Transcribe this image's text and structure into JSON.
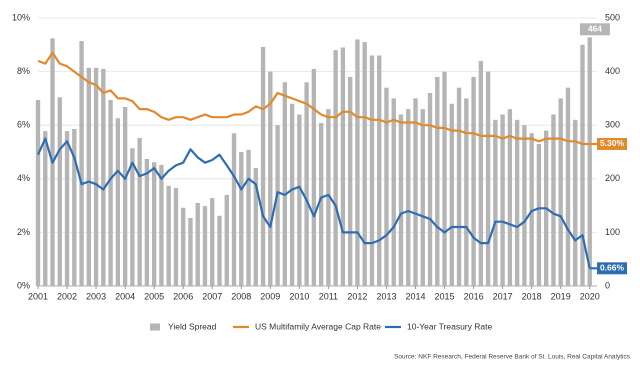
{
  "chart_data": {
    "type": "bar",
    "x": [
      2001,
      2001.25,
      2001.5,
      2001.75,
      2002,
      2002.25,
      2002.5,
      2002.75,
      2003,
      2003.25,
      2003.5,
      2003.75,
      2004,
      2004.25,
      2004.5,
      2004.75,
      2005,
      2005.25,
      2005.5,
      2005.75,
      2006,
      2006.25,
      2006.5,
      2006.75,
      2007,
      2007.25,
      2007.5,
      2007.75,
      2008,
      2008.25,
      2008.5,
      2008.75,
      2009,
      2009.25,
      2009.5,
      2009.75,
      2010,
      2010.25,
      2010.5,
      2010.75,
      2011,
      2011.25,
      2011.5,
      2011.75,
      2012,
      2012.25,
      2012.5,
      2012.75,
      2013,
      2013.25,
      2013.5,
      2013.75,
      2014,
      2014.25,
      2014.5,
      2014.75,
      2015,
      2015.25,
      2015.5,
      2015.75,
      2016,
      2016.25,
      2016.5,
      2016.75,
      2017,
      2017.25,
      2017.5,
      2017.75,
      2018,
      2018.25,
      2018.5,
      2018.75,
      2019,
      2019.25,
      2019.5,
      2019.75,
      2020
    ],
    "xlim": [
      2001,
      2020.25
    ],
    "xticks": [
      2001,
      2002,
      2003,
      2004,
      2005,
      2006,
      2007,
      2008,
      2009,
      2010,
      2011,
      2012,
      2013,
      2014,
      2015,
      2016,
      2017,
      2018,
      2019,
      2020
    ],
    "ylim": [
      0,
      10
    ],
    "yticks": [
      {
        "value": 0,
        "label": "0%"
      },
      {
        "value": 2,
        "label": "2%"
      },
      {
        "value": 4,
        "label": "4%"
      },
      {
        "value": 6,
        "label": "6%"
      },
      {
        "value": 8,
        "label": "8%"
      },
      {
        "value": 10,
        "label": "10%"
      }
    ],
    "y2lim": [
      0,
      500
    ],
    "y2ticks": [
      0,
      100,
      200,
      300,
      400,
      500
    ],
    "grid": true,
    "legend": "bottom",
    "series": [
      {
        "name": "Yield Spread",
        "type": "bar",
        "axis": "y2",
        "color": "#b5b5b5",
        "values": [
          347,
          289,
          462,
          352,
          289,
          293,
          457,
          407,
          407,
          405,
          347,
          313,
          334,
          257,
          276,
          237,
          231,
          226,
          187,
          183,
          146,
          127,
          155,
          149,
          164,
          131,
          170,
          285,
          250,
          254,
          220,
          446,
          400,
          300,
          380,
          340,
          320,
          380,
          405,
          304,
          330,
          440,
          445,
          390,
          460,
          455,
          430,
          430,
          370,
          350,
          320,
          330,
          350,
          330,
          360,
          390,
          400,
          340,
          370,
          350,
          390,
          420,
          400,
          310,
          320,
          330,
          310,
          300,
          285,
          265,
          290,
          320,
          350,
          370,
          310,
          450,
          464
        ],
        "value_labels": [
          null,
          null,
          null,
          null,
          null,
          null,
          null,
          null,
          null,
          null,
          null,
          null,
          null,
          null,
          null,
          null,
          null,
          null,
          null,
          null,
          null,
          null,
          null,
          null,
          null,
          null,
          null,
          null,
          null,
          null,
          null,
          null,
          null,
          null,
          null,
          null,
          null,
          null,
          null,
          null,
          null,
          null,
          null,
          null,
          null,
          null,
          null,
          null,
          null,
          null,
          null,
          null,
          null,
          null,
          null,
          null,
          null,
          null,
          null,
          null,
          null,
          null,
          null,
          null,
          null,
          null,
          null,
          null,
          null,
          null,
          null,
          null,
          null,
          null,
          null,
          null,
          "464"
        ]
      },
      {
        "name": "US Multifamily Average Cap Rate",
        "type": "line",
        "color": "#e08a2c",
        "values": [
          8.4,
          8.3,
          8.7,
          8.3,
          8.2,
          8.0,
          7.8,
          7.6,
          7.5,
          7.2,
          7.3,
          7.0,
          7.0,
          6.9,
          6.6,
          6.6,
          6.5,
          6.3,
          6.2,
          6.3,
          6.3,
          6.2,
          6.3,
          6.4,
          6.3,
          6.3,
          6.3,
          6.4,
          6.4,
          6.5,
          6.7,
          6.6,
          6.8,
          7.2,
          7.1,
          7.0,
          6.9,
          6.8,
          6.6,
          6.4,
          6.3,
          6.3,
          6.5,
          6.5,
          6.3,
          6.3,
          6.2,
          6.2,
          6.1,
          6.2,
          6.1,
          6.1,
          6.1,
          6.0,
          6.0,
          5.9,
          5.9,
          5.8,
          5.8,
          5.7,
          5.7,
          5.6,
          5.6,
          5.6,
          5.5,
          5.6,
          5.5,
          5.5,
          5.5,
          5.4,
          5.5,
          5.5,
          5.5,
          5.4,
          5.4,
          5.3,
          5.3
        ],
        "value_labels": [
          null,
          null,
          null,
          null,
          null,
          null,
          null,
          null,
          null,
          null,
          null,
          null,
          null,
          null,
          null,
          null,
          null,
          null,
          null,
          null,
          null,
          null,
          null,
          null,
          null,
          null,
          null,
          null,
          null,
          null,
          null,
          null,
          null,
          null,
          null,
          null,
          null,
          null,
          null,
          null,
          null,
          null,
          null,
          null,
          null,
          null,
          null,
          null,
          null,
          null,
          null,
          null,
          null,
          null,
          null,
          null,
          null,
          null,
          null,
          null,
          null,
          null,
          null,
          null,
          null,
          null,
          null,
          null,
          null,
          null,
          null,
          null,
          null,
          null,
          null,
          null,
          "5.30%"
        ]
      },
      {
        "name": "10-Year Treasury Rate",
        "type": "line",
        "color": "#2f6db3",
        "values": [
          4.9,
          5.5,
          4.6,
          5.1,
          5.4,
          4.8,
          3.8,
          3.9,
          3.8,
          3.6,
          4.0,
          4.3,
          4.0,
          4.6,
          4.1,
          4.2,
          4.4,
          4.0,
          4.3,
          4.5,
          4.6,
          5.1,
          4.8,
          4.6,
          4.7,
          4.9,
          4.5,
          4.1,
          3.6,
          4.0,
          3.8,
          2.6,
          2.2,
          3.5,
          3.4,
          3.6,
          3.7,
          3.2,
          2.6,
          3.3,
          3.4,
          3.0,
          2.0,
          2.0,
          2.0,
          1.6,
          1.6,
          1.7,
          1.9,
          2.2,
          2.7,
          2.8,
          2.7,
          2.6,
          2.5,
          2.2,
          2.0,
          2.2,
          2.2,
          2.2,
          1.8,
          1.6,
          1.6,
          2.4,
          2.4,
          2.3,
          2.2,
          2.4,
          2.8,
          2.9,
          2.9,
          2.7,
          2.6,
          2.1,
          1.7,
          1.9,
          0.66
        ],
        "value_labels": [
          null,
          null,
          null,
          null,
          null,
          null,
          null,
          null,
          null,
          null,
          null,
          null,
          null,
          null,
          null,
          null,
          null,
          null,
          null,
          null,
          null,
          null,
          null,
          null,
          null,
          null,
          null,
          null,
          null,
          null,
          null,
          null,
          null,
          null,
          null,
          null,
          null,
          null,
          null,
          null,
          null,
          null,
          null,
          null,
          null,
          null,
          null,
          null,
          null,
          null,
          null,
          null,
          null,
          null,
          null,
          null,
          null,
          null,
          null,
          null,
          null,
          null,
          null,
          null,
          null,
          null,
          null,
          null,
          null,
          null,
          null,
          null,
          null,
          null,
          null,
          null,
          "0.66%"
        ]
      }
    ],
    "source": "Source: NKF Research, Federal Reserve Bank of St. Louis, Real Capital Analytics"
  }
}
